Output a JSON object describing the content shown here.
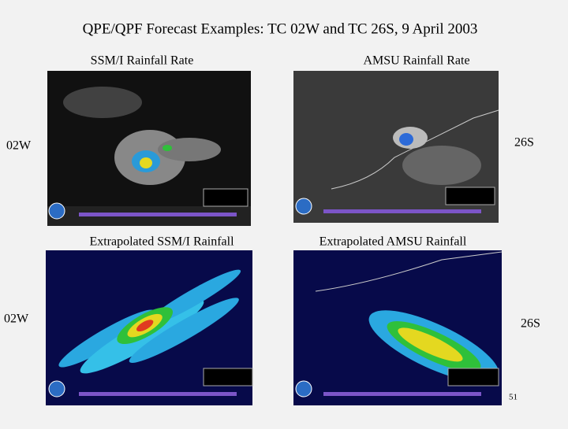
{
  "title": "QPE/QPF Forecast Examples: TC 02W and TC 26S, 9 April 2003",
  "panels": [
    {
      "caption": "SSM/I Rainfall Rate"
    },
    {
      "caption": "AMSU Rainfall Rate"
    },
    {
      "caption": "Extrapolated SSM/I Rainfall"
    },
    {
      "caption": "Extrapolated AMSU Rainfall"
    }
  ],
  "labels": [
    "02W",
    "26S",
    "02W",
    "26S"
  ],
  "page_number": "51"
}
